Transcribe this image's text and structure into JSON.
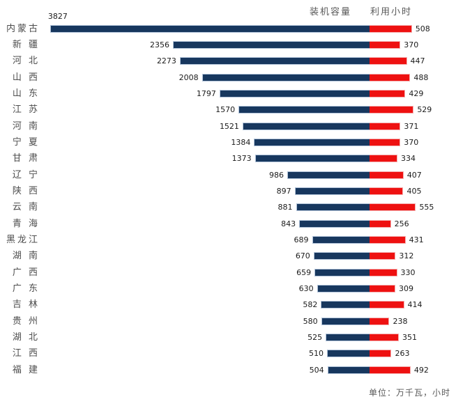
{
  "legend": {
    "capacity_label": "装机容量",
    "hours_label": "利用小时"
  },
  "footer": {
    "unit_note": "单位：万千瓦，小时"
  },
  "colors": {
    "capacity_bar": "#17375E",
    "hours_bar": "#EE1111",
    "muted_text": "#595959"
  },
  "chart_data": {
    "type": "bar",
    "subtype": "horizontal-diverging-tornado",
    "title": "",
    "unit_note": "单位：万千瓦，小时",
    "legend_position": "top-center",
    "value_labels_shown": true,
    "categories": [
      "内蒙古",
      "新 疆",
      "河 北",
      "山 西",
      "山 东",
      "江 苏",
      "河 南",
      "宁 夏",
      "甘 肃",
      "辽 宁",
      "陕 西",
      "云 南",
      "青 海",
      "黑龙江",
      "湖 南",
      "广 西",
      "广 东",
      "吉 林",
      "贵 州",
      "湖 北",
      "江 西",
      "福 建"
    ],
    "series": [
      {
        "name": "装机容量",
        "direction": "left",
        "color": "#17375E",
        "values": [
          3827,
          2356,
          2273,
          2008,
          1797,
          1570,
          1521,
          1384,
          1373,
          986,
          897,
          881,
          843,
          689,
          670,
          659,
          630,
          582,
          580,
          525,
          510,
          504
        ]
      },
      {
        "name": "利用小时",
        "direction": "right",
        "color": "#EE1111",
        "values": [
          508,
          370,
          447,
          488,
          429,
          529,
          371,
          370,
          334,
          407,
          405,
          555,
          256,
          431,
          312,
          330,
          309,
          414,
          238,
          351,
          263,
          492
        ]
      }
    ]
  }
}
